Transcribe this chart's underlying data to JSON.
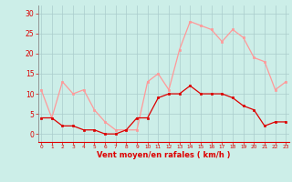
{
  "x": [
    0,
    1,
    2,
    3,
    4,
    5,
    6,
    7,
    8,
    9,
    10,
    11,
    12,
    13,
    14,
    15,
    16,
    17,
    18,
    19,
    20,
    21,
    22,
    23
  ],
  "avg_wind": [
    4,
    4,
    2,
    2,
    1,
    1,
    0,
    0,
    1,
    4,
    4,
    9,
    10,
    10,
    12,
    10,
    10,
    10,
    9,
    7,
    6,
    2,
    3,
    3
  ],
  "gust_wind": [
    11,
    4,
    13,
    10,
    11,
    6,
    3,
    1,
    1,
    1,
    13,
    15,
    11,
    21,
    28,
    27,
    26,
    23,
    26,
    24,
    19,
    18,
    11,
    13
  ],
  "avg_color": "#dd0000",
  "gust_color": "#ff9999",
  "bg_color": "#cceee8",
  "grid_color": "#aacccc",
  "xlabel": "Vent moyen/en rafales ( km/h )",
  "tick_color": "#dd0000",
  "yticks": [
    0,
    5,
    10,
    15,
    20,
    25,
    30
  ],
  "ylim": [
    -2,
    32
  ],
  "xlim": [
    -0.3,
    23.3
  ]
}
